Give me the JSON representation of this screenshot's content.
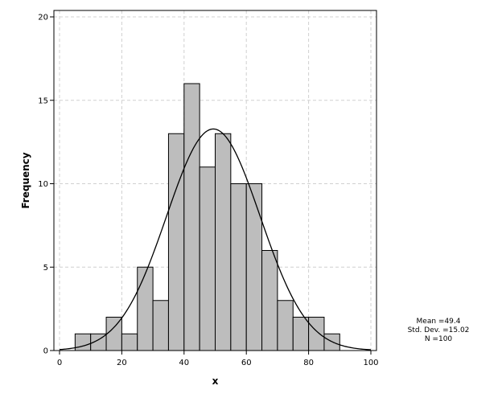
{
  "chart_data": {
    "type": "bar",
    "subtype": "histogram",
    "xlabel": "x",
    "ylabel": "Frequency",
    "xlim": [
      0,
      100
    ],
    "ylim": [
      0,
      20
    ],
    "x_ticks": [
      0,
      20,
      40,
      60,
      80,
      100
    ],
    "y_ticks": [
      0,
      5,
      10,
      15,
      20
    ],
    "bin_width": 5,
    "bins": [
      {
        "start": 5,
        "end": 10,
        "count": 1
      },
      {
        "start": 10,
        "end": 15,
        "count": 1
      },
      {
        "start": 15,
        "end": 20,
        "count": 2
      },
      {
        "start": 20,
        "end": 25,
        "count": 1
      },
      {
        "start": 25,
        "end": 30,
        "count": 5
      },
      {
        "start": 30,
        "end": 35,
        "count": 3
      },
      {
        "start": 35,
        "end": 40,
        "count": 13
      },
      {
        "start": 40,
        "end": 45,
        "count": 16
      },
      {
        "start": 45,
        "end": 50,
        "count": 11
      },
      {
        "start": 50,
        "end": 55,
        "count": 13
      },
      {
        "start": 55,
        "end": 60,
        "count": 10
      },
      {
        "start": 60,
        "end": 65,
        "count": 10
      },
      {
        "start": 65,
        "end": 70,
        "count": 6
      },
      {
        "start": 70,
        "end": 75,
        "count": 3
      },
      {
        "start": 75,
        "end": 80,
        "count": 2
      },
      {
        "start": 80,
        "end": 85,
        "count": 2
      },
      {
        "start": 85,
        "end": 90,
        "count": 1
      }
    ],
    "normal_curve": {
      "mean": 49.4,
      "std": 15.02,
      "n": 100
    },
    "grid": true,
    "bar_color": "#bdbdbd",
    "stats_lines": [
      "Mean =49.4",
      "Std. Dev. =15.02",
      "N =100"
    ]
  }
}
